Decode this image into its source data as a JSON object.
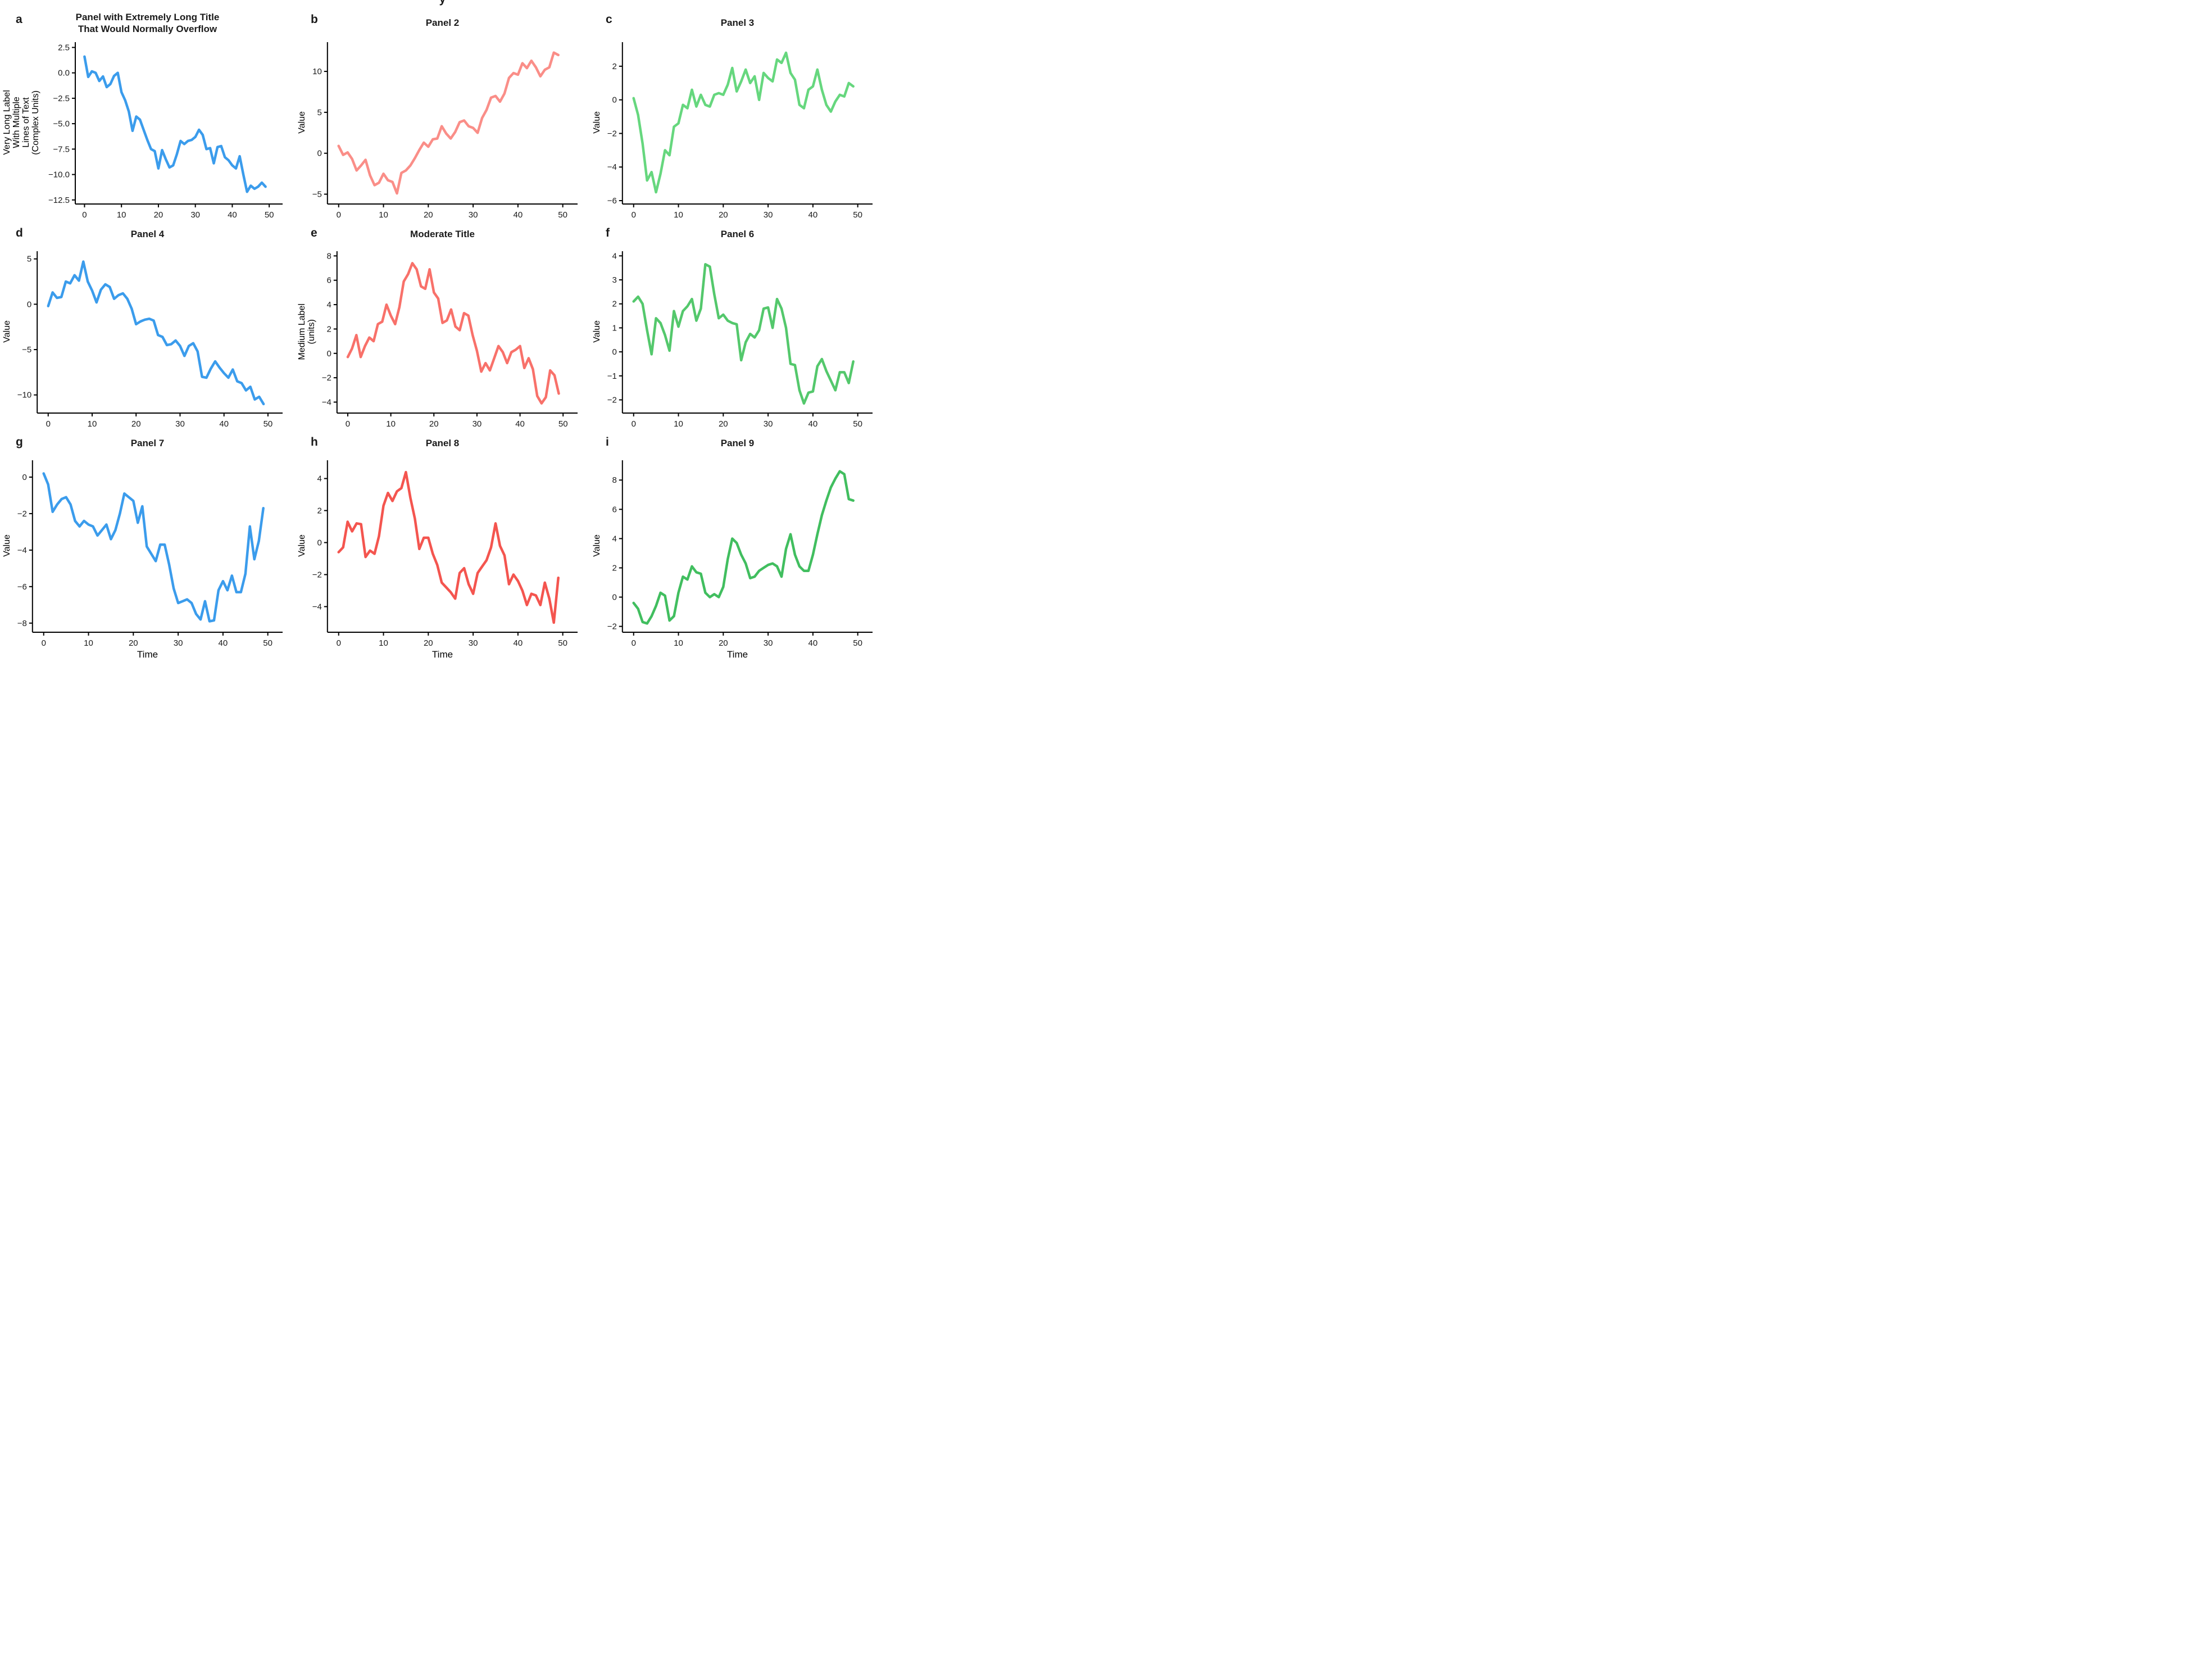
{
  "figure": {
    "clipped_title_fragment": "y"
  },
  "chart_data": [
    {
      "type": "line",
      "tag": "a",
      "title": "Panel with Extremely Long Title\nThat Would Normally Overflow",
      "ylabel": "Very Long Label\nWith Multiple\nLines of Text\n(Complex Units)",
      "xlabel": "",
      "color": "#3B9CEC",
      "x": {
        "start": 0,
        "step": 1,
        "count": 50
      },
      "x_ticks": [
        0,
        10,
        20,
        30,
        40,
        50
      ],
      "x_tick_labels": [
        "0",
        "10",
        "20",
        "30",
        "40",
        "50"
      ],
      "y_ticks": [
        2.5,
        0.0,
        -2.5,
        -5.0,
        -7.5,
        -10.0,
        -12.5
      ],
      "y_tick_labels": [
        "2.5",
        "0.0",
        "−2.5",
        "−5.0",
        "−7.5",
        "−10.0",
        "−12.5"
      ],
      "xlim": [
        -2.5,
        51.8
      ],
      "ylim": [
        -12.9,
        2.8
      ],
      "values": [
        1.6,
        -0.4,
        0.15,
        0.0,
        -0.8,
        -0.35,
        -1.4,
        -1.1,
        -0.3,
        0.0,
        -1.9,
        -2.7,
        -3.8,
        -5.7,
        -4.3,
        -4.6,
        -5.6,
        -6.6,
        -7.5,
        -7.7,
        -9.4,
        -7.6,
        -8.5,
        -9.3,
        -9.1,
        -8.0,
        -6.7,
        -7.0,
        -6.7,
        -6.6,
        -6.3,
        -5.6,
        -6.1,
        -7.5,
        -7.4,
        -8.9,
        -7.3,
        -7.2,
        -8.3,
        -8.6,
        -9.1,
        -9.4,
        -8.2,
        -10.0,
        -11.7,
        -11.1,
        -11.4,
        -11.2,
        -10.8,
        -11.2
      ]
    },
    {
      "type": "line",
      "tag": "b",
      "title": "Panel 2",
      "ylabel": "Value",
      "xlabel": "",
      "color": "#FA8E88",
      "x": {
        "start": 0,
        "step": 1,
        "count": 50
      },
      "x_ticks": [
        0,
        10,
        20,
        30,
        40,
        50
      ],
      "x_tick_labels": [
        "0",
        "10",
        "20",
        "30",
        "40",
        "50"
      ],
      "y_ticks": [
        10,
        5,
        0,
        -5
      ],
      "y_tick_labels": [
        "10",
        "5",
        "0",
        "−5"
      ],
      "xlim": [
        -2.5,
        51.8
      ],
      "ylim": [
        -6.2,
        13.3
      ],
      "values": [
        0.9,
        -0.2,
        0.1,
        -0.7,
        -2.1,
        -1.5,
        -0.8,
        -2.7,
        -3.9,
        -3.6,
        -2.5,
        -3.3,
        -3.5,
        -4.9,
        -2.4,
        -2.1,
        -1.5,
        -0.6,
        0.4,
        1.3,
        0.8,
        1.7,
        1.8,
        3.3,
        2.4,
        1.8,
        2.6,
        3.8,
        4.0,
        3.3,
        3.1,
        2.5,
        4.3,
        5.3,
        6.8,
        7.0,
        6.3,
        7.3,
        9.2,
        9.8,
        9.6,
        11.0,
        10.4,
        11.3,
        10.5,
        9.4,
        10.2,
        10.5,
        12.3,
        12.0
      ]
    },
    {
      "type": "line",
      "tag": "c",
      "title": "Panel 3",
      "ylabel": "Value",
      "xlabel": "",
      "color": "#66D77E",
      "x": {
        "start": 0,
        "step": 1,
        "count": 50
      },
      "x_ticks": [
        0,
        10,
        20,
        30,
        40,
        50
      ],
      "x_tick_labels": [
        "0",
        "10",
        "20",
        "30",
        "40",
        "50"
      ],
      "y_ticks": [
        2,
        0,
        -2,
        -4,
        -6
      ],
      "y_tick_labels": [
        "2",
        "0",
        "−2",
        "−4",
        "−6"
      ],
      "xlim": [
        -2.5,
        51.8
      ],
      "ylim": [
        -6.2,
        3.3
      ],
      "values": [
        0.1,
        -0.9,
        -2.6,
        -4.8,
        -4.3,
        -5.5,
        -4.4,
        -3.0,
        -3.3,
        -1.6,
        -1.4,
        -0.3,
        -0.5,
        0.6,
        -0.4,
        0.3,
        -0.3,
        -0.4,
        0.3,
        0.4,
        0.3,
        0.9,
        1.9,
        0.5,
        1.1,
        1.8,
        1.0,
        1.4,
        0.0,
        1.6,
        1.3,
        1.1,
        2.4,
        2.2,
        2.8,
        1.6,
        1.2,
        -0.3,
        -0.5,
        0.6,
        0.8,
        1.8,
        0.6,
        -0.3,
        -0.7,
        -0.1,
        0.3,
        0.2,
        1.0,
        0.8
      ]
    },
    {
      "type": "line",
      "tag": "d",
      "title": "Panel 4",
      "ylabel": "Value",
      "xlabel": "",
      "color": "#3B9CEC",
      "x": {
        "start": 0,
        "step": 1,
        "count": 50
      },
      "x_ticks": [
        0,
        10,
        20,
        30,
        40,
        50
      ],
      "x_tick_labels": [
        "0",
        "10",
        "20",
        "30",
        "40",
        "50"
      ],
      "y_ticks": [
        5,
        0,
        -5,
        -10
      ],
      "y_tick_labels": [
        "5",
        "0",
        "−5",
        "−10"
      ],
      "xlim": [
        -2.5,
        51.8
      ],
      "ylim": [
        -12.0,
        5.6
      ],
      "values": [
        -0.2,
        1.3,
        0.7,
        0.8,
        2.5,
        2.3,
        3.2,
        2.6,
        4.7,
        2.5,
        1.5,
        0.2,
        1.6,
        2.2,
        1.9,
        0.6,
        1.0,
        1.2,
        0.6,
        -0.5,
        -2.2,
        -1.9,
        -1.7,
        -1.6,
        -1.8,
        -3.4,
        -3.6,
        -4.5,
        -4.4,
        -4.0,
        -4.6,
        -5.7,
        -4.6,
        -4.3,
        -5.2,
        -8.0,
        -8.1,
        -7.1,
        -6.3,
        -7.0,
        -7.6,
        -8.1,
        -7.2,
        -8.5,
        -8.7,
        -9.5,
        -9.1,
        -10.5,
        -10.2,
        -11.0
      ]
    },
    {
      "type": "line",
      "tag": "e",
      "title": "Moderate Title",
      "ylabel": "Medium Label\n(units)",
      "xlabel": "",
      "color": "#F8716A",
      "x": {
        "start": 0,
        "step": 1,
        "count": 50
      },
      "x_ticks": [
        0,
        10,
        20,
        30,
        40,
        50
      ],
      "x_tick_labels": [
        "0",
        "10",
        "20",
        "30",
        "40",
        "50"
      ],
      "y_ticks": [
        8,
        6,
        4,
        2,
        0,
        -2,
        -4
      ],
      "y_tick_labels": [
        "8",
        "6",
        "4",
        "2",
        "0",
        "−2",
        "−4"
      ],
      "xlim": [
        -2.5,
        51.8
      ],
      "ylim": [
        -4.9,
        8.2
      ],
      "values": [
        -0.3,
        0.4,
        1.5,
        -0.3,
        0.6,
        1.3,
        1.0,
        2.4,
        2.6,
        4.0,
        3.1,
        2.4,
        3.8,
        5.9,
        6.5,
        7.4,
        6.9,
        5.5,
        5.3,
        6.9,
        5.0,
        4.5,
        2.5,
        2.7,
        3.6,
        2.2,
        1.9,
        3.3,
        3.1,
        1.5,
        0.2,
        -1.5,
        -0.8,
        -1.4,
        -0.4,
        0.6,
        0.1,
        -0.8,
        0.1,
        0.3,
        0.6,
        -1.2,
        -0.4,
        -1.3,
        -3.5,
        -4.1,
        -3.6,
        -1.4,
        -1.8,
        -3.3
      ]
    },
    {
      "type": "line",
      "tag": "f",
      "title": "Panel 6",
      "ylabel": "Value",
      "xlabel": "",
      "color": "#54C86C",
      "x": {
        "start": 0,
        "step": 1,
        "count": 50
      },
      "x_ticks": [
        0,
        10,
        20,
        30,
        40,
        50
      ],
      "x_tick_labels": [
        "0",
        "10",
        "20",
        "30",
        "40",
        "50"
      ],
      "y_ticks": [
        4,
        3,
        2,
        1,
        0,
        -1,
        -2
      ],
      "y_tick_labels": [
        "4",
        "3",
        "2",
        "1",
        "0",
        "−1",
        "−2"
      ],
      "xlim": [
        -2.5,
        51.8
      ],
      "ylim": [
        -2.55,
        4.1
      ],
      "values": [
        2.1,
        2.3,
        2.0,
        0.9,
        -0.1,
        1.4,
        1.2,
        0.7,
        0.05,
        1.7,
        1.05,
        1.7,
        1.9,
        2.2,
        1.3,
        1.8,
        3.65,
        3.55,
        2.4,
        1.4,
        1.55,
        1.3,
        1.2,
        1.15,
        -0.35,
        0.4,
        0.75,
        0.6,
        0.9,
        1.8,
        1.85,
        1.0,
        2.2,
        1.8,
        1.0,
        -0.5,
        -0.55,
        -1.6,
        -2.15,
        -1.7,
        -1.65,
        -0.6,
        -0.3,
        -0.8,
        -1.2,
        -1.6,
        -0.85,
        -0.85,
        -1.3,
        -0.4
      ]
    },
    {
      "type": "line",
      "tag": "g",
      "title": "Panel 7",
      "ylabel": "Value",
      "xlabel": "Time",
      "color": "#3B9CEC",
      "x": {
        "start": 0,
        "step": 1,
        "count": 50
      },
      "x_ticks": [
        0,
        10,
        20,
        30,
        40,
        50
      ],
      "x_tick_labels": [
        "0",
        "10",
        "20",
        "30",
        "40",
        "50"
      ],
      "y_ticks": [
        0,
        -2,
        -4,
        -6,
        -8
      ],
      "y_tick_labels": [
        "0",
        "−2",
        "−4",
        "−6",
        "−8"
      ],
      "xlim": [
        -2.5,
        51.8
      ],
      "ylim": [
        -8.5,
        0.8
      ],
      "values": [
        0.2,
        -0.4,
        -1.9,
        -1.5,
        -1.2,
        -1.1,
        -1.5,
        -2.4,
        -2.7,
        -2.4,
        -2.6,
        -2.7,
        -3.2,
        -2.9,
        -2.6,
        -3.4,
        -2.9,
        -2.0,
        -0.9,
        -1.1,
        -1.3,
        -2.5,
        -1.6,
        -3.8,
        -4.2,
        -4.6,
        -3.7,
        -3.7,
        -4.8,
        -6.1,
        -6.9,
        -6.8,
        -6.7,
        -6.9,
        -7.5,
        -7.8,
        -6.8,
        -7.9,
        -7.85,
        -6.2,
        -5.7,
        -6.2,
        -5.4,
        -6.3,
        -6.3,
        -5.3,
        -2.7,
        -4.5,
        -3.5,
        -1.7
      ]
    },
    {
      "type": "line",
      "tag": "h",
      "title": "Panel 8",
      "ylabel": "Value",
      "xlabel": "Time",
      "color": "#F4554F",
      "x": {
        "start": 0,
        "step": 1,
        "count": 50
      },
      "x_ticks": [
        0,
        10,
        20,
        30,
        40,
        50
      ],
      "x_tick_labels": [
        "0",
        "10",
        "20",
        "30",
        "40",
        "50"
      ],
      "y_ticks": [
        4,
        2,
        0,
        -2,
        -4
      ],
      "y_tick_labels": [
        "4",
        "2",
        "0",
        "−2",
        "−4"
      ],
      "xlim": [
        -2.5,
        51.8
      ],
      "ylim": [
        -5.6,
        5.0
      ],
      "values": [
        -0.6,
        -0.3,
        1.3,
        0.7,
        1.2,
        1.15,
        -0.9,
        -0.5,
        -0.7,
        0.4,
        2.3,
        3.1,
        2.6,
        3.2,
        3.4,
        4.4,
        2.8,
        1.5,
        -0.4,
        0.3,
        0.3,
        -0.7,
        -1.4,
        -2.5,
        -2.8,
        -3.1,
        -3.5,
        -1.9,
        -1.6,
        -2.6,
        -3.2,
        -1.9,
        -1.5,
        -1.1,
        -0.3,
        1.2,
        -0.2,
        -0.8,
        -2.6,
        -2.0,
        -2.4,
        -3.0,
        -3.9,
        -3.2,
        -3.3,
        -3.9,
        -2.5,
        -3.5,
        -5.0,
        -2.2
      ]
    },
    {
      "type": "line",
      "tag": "i",
      "title": "Panel 9",
      "ylabel": "Value",
      "xlabel": "Time",
      "color": "#41BE5F",
      "x": {
        "start": 0,
        "step": 1,
        "count": 50
      },
      "x_ticks": [
        0,
        10,
        20,
        30,
        40,
        50
      ],
      "x_tick_labels": [
        "0",
        "10",
        "20",
        "30",
        "40",
        "50"
      ],
      "y_ticks": [
        8,
        6,
        4,
        2,
        0,
        -2
      ],
      "y_tick_labels": [
        "8",
        "6",
        "4",
        "2",
        "0",
        "−2"
      ],
      "xlim": [
        -2.5,
        51.8
      ],
      "ylim": [
        -2.4,
        9.2
      ],
      "values": [
        -0.4,
        -0.8,
        -1.7,
        -1.8,
        -1.3,
        -0.6,
        0.3,
        0.1,
        -1.6,
        -1.3,
        0.3,
        1.4,
        1.2,
        2.1,
        1.7,
        1.6,
        0.3,
        0.0,
        0.2,
        0.0,
        0.7,
        2.6,
        4.0,
        3.7,
        2.9,
        2.3,
        1.3,
        1.4,
        1.8,
        2.0,
        2.2,
        2.3,
        2.1,
        1.4,
        3.3,
        4.3,
        2.9,
        2.1,
        1.8,
        1.8,
        2.9,
        4.3,
        5.6,
        6.6,
        7.5,
        8.1,
        8.6,
        8.4,
        6.7,
        6.6
      ]
    }
  ]
}
